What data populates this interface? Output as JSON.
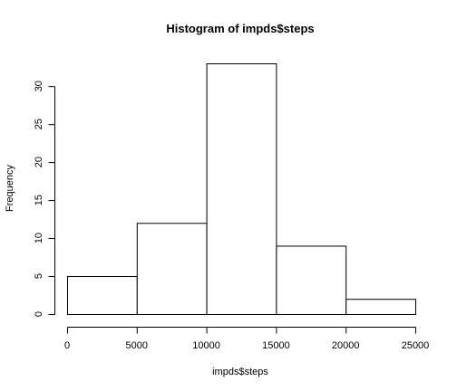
{
  "chart_data": {
    "type": "bar",
    "title": "Histogram of impds$steps",
    "xlabel": "impds$steps",
    "ylabel": "Frequency",
    "bins": [
      {
        "start": 0,
        "end": 5000,
        "count": 5
      },
      {
        "start": 5000,
        "end": 10000,
        "count": 12
      },
      {
        "start": 10000,
        "end": 15000,
        "count": 33
      },
      {
        "start": 15000,
        "end": 20000,
        "count": 9
      },
      {
        "start": 20000,
        "end": 25000,
        "count": 2
      }
    ],
    "xlim": [
      0,
      25000
    ],
    "ylim": [
      0,
      33
    ],
    "x_ticks": [
      0,
      5000,
      10000,
      15000,
      20000,
      25000
    ],
    "y_ticks": [
      0,
      5,
      10,
      15,
      20,
      25,
      30
    ],
    "grid": false,
    "colors": {
      "bar_fill": "#ffffff",
      "bar_stroke": "#000000"
    }
  }
}
